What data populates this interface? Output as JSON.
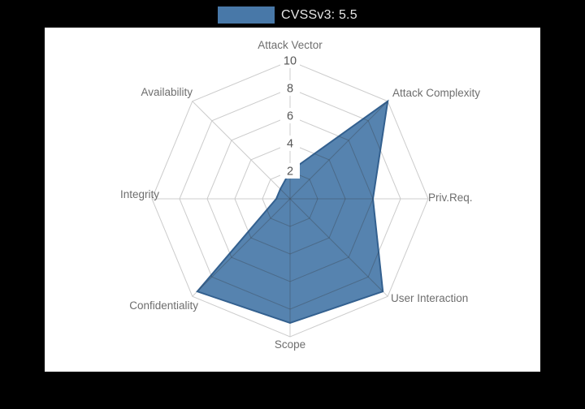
{
  "legend": {
    "label": "CVSSv3: 5.5",
    "swatch_color": "#4878a8"
  },
  "chart_data": {
    "type": "radar",
    "title": "",
    "categories": [
      "Attack Vector",
      "Attack Complexity",
      "Priv.Req.",
      "User Interaction",
      "Scope",
      "Confidentiality",
      "Integrity",
      "Availability"
    ],
    "series": [
      {
        "name": "CVSSv3: 5.5",
        "values": [
          2,
          10,
          6,
          9.5,
          9,
          9.5,
          1,
          1
        ]
      }
    ],
    "radial_ticks": [
      2,
      4,
      6,
      8,
      10
    ],
    "rmax": 10,
    "legend_position": "top",
    "grid": true,
    "fill_color": "#4878a8",
    "fill_opacity": 0.92,
    "line_color": "#33608f",
    "grid_color": "#cccccc",
    "grid_overlay_color": "rgba(60,60,60,0.30)",
    "tick_text_color": "#555555",
    "tick_box_color": "#ffffff",
    "label_color": "#6e6e6e"
  }
}
